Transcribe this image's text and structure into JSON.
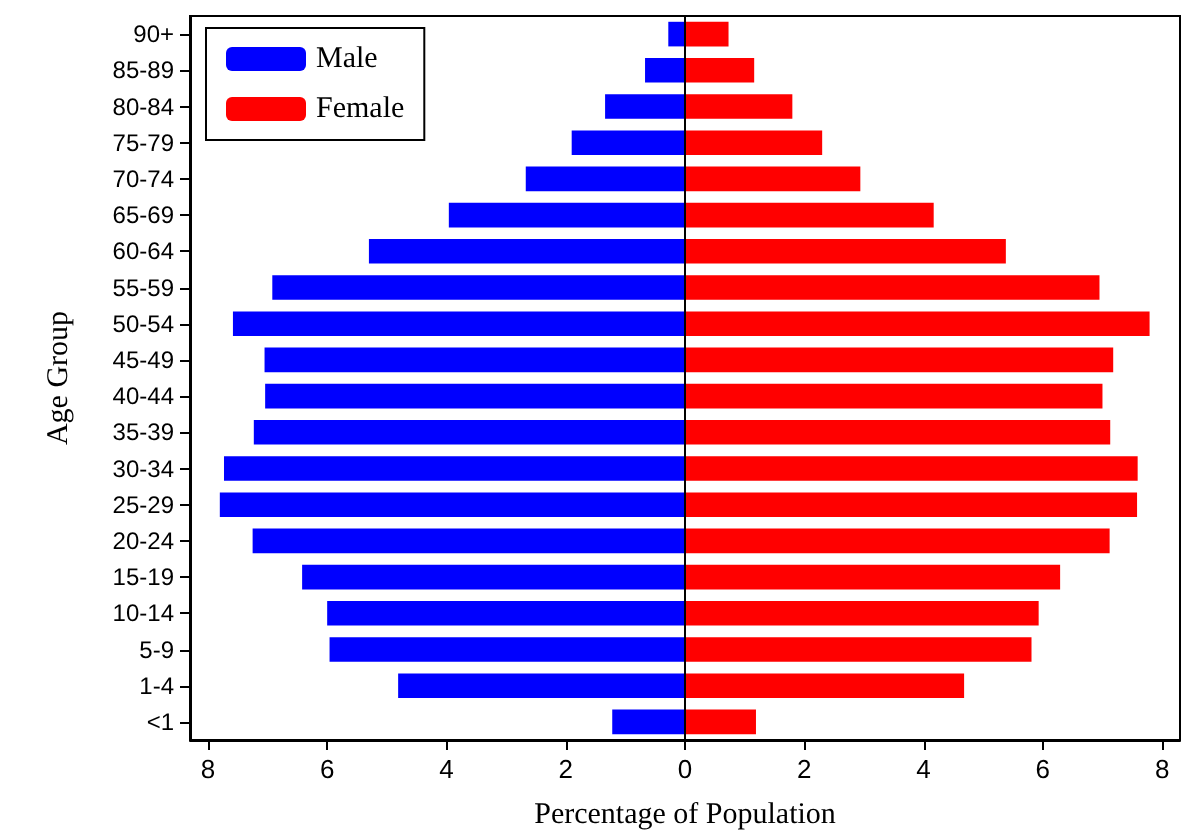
{
  "chart_data": {
    "type": "bar",
    "orientation": "horizontal",
    "xlabel": "Percentage of Population",
    "ylabel": "Age Group",
    "categories": [
      "90+",
      "85-89",
      "80-84",
      "75-79",
      "70-74",
      "65-69",
      "60-64",
      "55-59",
      "50-54",
      "45-49",
      "40-44",
      "35-39",
      "30-34",
      "25-29",
      "20-24",
      "15-19",
      "10-14",
      "5-9",
      "1-4",
      "<1"
    ],
    "series": [
      {
        "name": "Male",
        "color": "#0000ff",
        "values": [
          -0.28,
          -0.67,
          -1.34,
          -1.9,
          -2.67,
          -3.96,
          -5.3,
          -6.92,
          -7.58,
          -7.05,
          -7.04,
          -7.23,
          -7.73,
          -7.8,
          -7.25,
          -6.42,
          -6.0,
          -5.96,
          -4.81,
          -1.22
        ]
      },
      {
        "name": "Female",
        "color": "#ff0000",
        "values": [
          0.73,
          1.16,
          1.8,
          2.3,
          2.94,
          4.17,
          5.38,
          6.95,
          7.79,
          7.18,
          7.0,
          7.13,
          7.59,
          7.58,
          7.12,
          6.29,
          5.93,
          5.81,
          4.68,
          1.19
        ]
      }
    ],
    "xlim": [
      -8.3,
      8.3
    ],
    "xticks": [
      {
        "value": -8,
        "label": "8"
      },
      {
        "value": -6,
        "label": "6"
      },
      {
        "value": -4,
        "label": "4"
      },
      {
        "value": -2,
        "label": "2"
      },
      0,
      2,
      4,
      6,
      8
    ],
    "stacked": true,
    "ref_lines": [
      {
        "axis": "x",
        "value": 0,
        "color": "#000000"
      }
    ],
    "legend": "top left",
    "grid": false
  }
}
